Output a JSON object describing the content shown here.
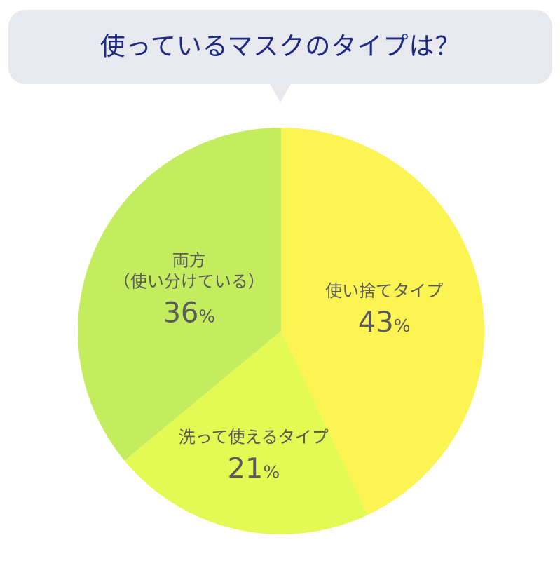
{
  "title": "使っているマスクのタイプは？",
  "chart_data": {
    "type": "pie",
    "title": "使っているマスクのタイプは？",
    "slices": [
      {
        "label": "使い捨てタイプ",
        "value": 43,
        "value_text": "43%",
        "color": "#fbf453"
      },
      {
        "label": "洗って使えるタイプ",
        "value": 21,
        "value_text": "21%",
        "color": "#e3fa55"
      },
      {
        "label": "両方（使い分けている）",
        "value": 36,
        "value_text": "36%",
        "color": "#c3ec5f"
      }
    ],
    "start": "top",
    "direction": "clockwise",
    "legend": "none",
    "labels": "inside"
  }
}
